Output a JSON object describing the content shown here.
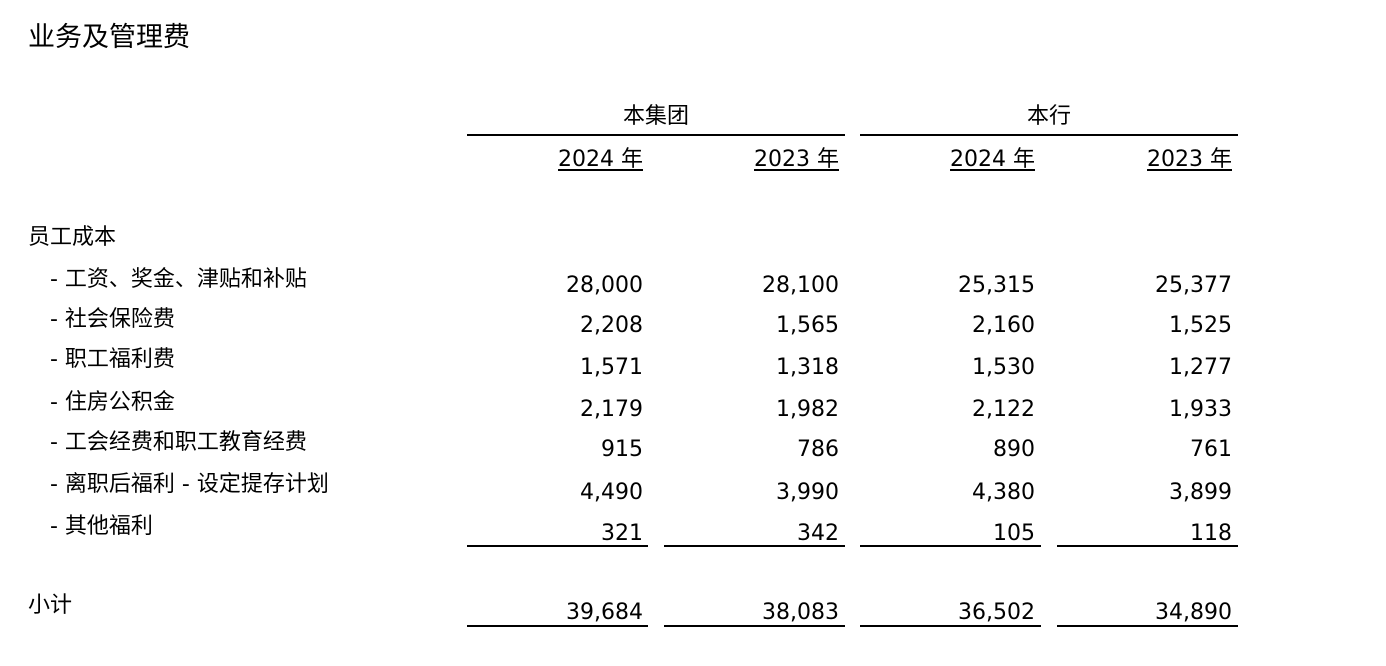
{
  "title": "业务及管理费",
  "groups": [
    "本集团",
    "本行"
  ],
  "years": [
    "2024 年",
    "2023 年",
    "2024 年",
    "2023 年"
  ],
  "section": "员工成本",
  "rows": [
    {
      "label": "- 工资、奖金、津贴和补贴",
      "values": [
        "28,000",
        "28,100",
        "25,315",
        "25,377"
      ]
    },
    {
      "label": "- 社会保险费",
      "values": [
        "2,208",
        "1,565",
        "2,160",
        "1,525"
      ]
    },
    {
      "label": "- 职工福利费",
      "values": [
        "1,571",
        "1,318",
        "1,530",
        "1,277"
      ]
    },
    {
      "label": "- 住房公积金",
      "values": [
        "2,179",
        "1,982",
        "2,122",
        "1,933"
      ]
    },
    {
      "label": "- 工会经费和职工教育经费",
      "values": [
        "915",
        "786",
        "890",
        "761"
      ]
    },
    {
      "label": "- 离职后福利 - 设定提存计划",
      "values": [
        "4,490",
        "3,990",
        "4,380",
        "3,899"
      ]
    },
    {
      "label": "- 其他福利",
      "values": [
        "321",
        "342",
        "105",
        "118"
      ]
    }
  ],
  "subtotal": {
    "label": "小计",
    "values": [
      "39,684",
      "38,083",
      "36,502",
      "34,890"
    ]
  }
}
